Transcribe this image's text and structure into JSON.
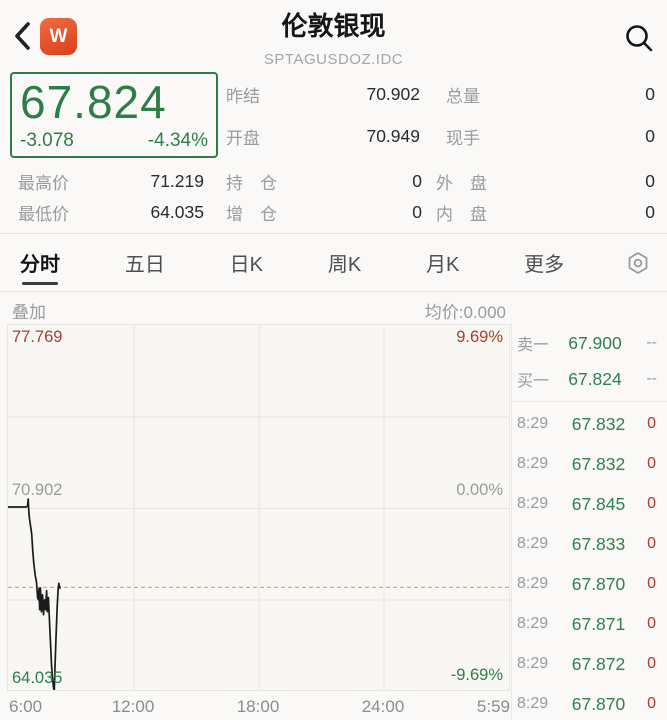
{
  "colors": {
    "green_down": "#2e7d49",
    "panel_green": "#2e8052",
    "red_up": "#b03a30",
    "avg_line": "#d9a53f",
    "badge_orange": "#e84c28"
  },
  "header": {
    "title": "伦敦银现",
    "subtitle": "SPTAGUSDOZ.IDC",
    "app_badge": "W"
  },
  "quote": {
    "last_price": "67.824",
    "change": "-3.078",
    "change_pct": "-4.34%",
    "stats_right": [
      {
        "label": "昨结",
        "value": "70.902"
      },
      {
        "label": "总量",
        "value": "0"
      },
      {
        "label": "开盘",
        "value": "70.949"
      },
      {
        "label": "现手",
        "value": "0"
      }
    ],
    "stats_bottom": [
      {
        "label": "最高价",
        "value": "71.219"
      },
      {
        "label": "持　仓",
        "value": "0"
      },
      {
        "label": "外　盘",
        "value": "0"
      },
      {
        "label": "最低价",
        "value": "64.035"
      },
      {
        "label": "增　仓",
        "value": "0"
      },
      {
        "label": "内　盘",
        "value": "0"
      }
    ]
  },
  "tabs": {
    "items": [
      "分时",
      "五日",
      "日K",
      "周K",
      "月K",
      "更多"
    ],
    "active": "分时"
  },
  "chart_header": {
    "overlay_label": "叠加",
    "avg_label": "均价:0.000"
  },
  "chart_data": {
    "type": "line",
    "title": "分时 intraday price",
    "x_ticks": [
      "6:00",
      "12:00",
      "18:00",
      "24:00",
      "5:59"
    ],
    "x_minutes_range": [
      0,
      1439
    ],
    "ylim": [
      64.035,
      77.769
    ],
    "prev_close": 70.902,
    "grid": true,
    "y_left_labels": [
      {
        "text": "77.769",
        "color": "red"
      },
      {
        "text": "70.902",
        "color": "gray"
      },
      {
        "text": "64.035",
        "color": "green"
      }
    ],
    "y_right_labels": [
      {
        "text": "9.69%",
        "color": "red"
      },
      {
        "text": "0.00%",
        "color": "gray"
      },
      {
        "text": "-9.69%",
        "color": "green"
      }
    ],
    "avg_line_price": 67.9,
    "series": [
      {
        "name": "price",
        "points": [
          [
            0,
            70.92
          ],
          [
            52,
            70.92
          ],
          [
            56,
            70.95
          ],
          [
            58,
            71.219
          ],
          [
            60,
            70.7
          ],
          [
            62,
            70.45
          ],
          [
            65,
            70.2
          ],
          [
            68,
            69.9
          ],
          [
            71,
            69.3
          ],
          [
            74,
            68.8
          ],
          [
            78,
            68.35
          ],
          [
            82,
            68.1
          ],
          [
            85,
            67.5
          ],
          [
            88,
            67.43
          ],
          [
            89,
            67.85
          ],
          [
            91,
            67.06
          ],
          [
            93,
            67.88
          ],
          [
            96,
            66.98
          ],
          [
            99,
            67.62
          ],
          [
            102,
            66.87
          ],
          [
            105,
            67.43
          ],
          [
            108,
            67.06
          ],
          [
            111,
            67.77
          ],
          [
            113,
            66.98
          ],
          [
            116,
            67.51
          ],
          [
            119,
            66.7
          ],
          [
            122,
            65.8
          ],
          [
            125,
            65.0
          ],
          [
            128,
            64.45
          ],
          [
            131,
            64.1
          ],
          [
            133,
            64.035
          ],
          [
            135,
            64.9
          ],
          [
            138,
            66.0
          ],
          [
            141,
            67.1
          ],
          [
            144,
            67.8
          ],
          [
            146,
            68.05
          ],
          [
            149,
            67.87
          ]
        ]
      }
    ]
  },
  "order_book": {
    "rows": [
      {
        "label": "卖一",
        "price": "67.900",
        "value": "--"
      },
      {
        "label": "买一",
        "price": "67.824",
        "value": "--"
      }
    ]
  },
  "trades": {
    "rows": [
      {
        "time": "8:29",
        "price": "67.832",
        "value": "0"
      },
      {
        "time": "8:29",
        "price": "67.832",
        "value": "0"
      },
      {
        "time": "8:29",
        "price": "67.845",
        "value": "0"
      },
      {
        "time": "8:29",
        "price": "67.833",
        "value": "0"
      },
      {
        "time": "8:29",
        "price": "67.870",
        "value": "0"
      },
      {
        "time": "8:29",
        "price": "67.871",
        "value": "0"
      },
      {
        "time": "8:29",
        "price": "67.872",
        "value": "0"
      },
      {
        "time": "8:29",
        "price": "67.870",
        "value": "0"
      }
    ]
  }
}
